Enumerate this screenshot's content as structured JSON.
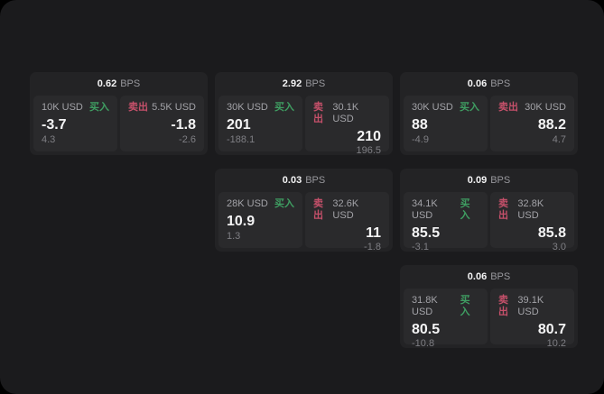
{
  "colors": {
    "screen_bg": "#1b1b1d",
    "card_bg": "#232325",
    "panel_bg": "#2a2a2c",
    "buy_green": "#3f9e62",
    "sell_red": "#c5506a",
    "price_white": "#f4f4f5",
    "label_gray": "#a3a3a8",
    "sub_gray": "#7f7f84",
    "unit_gray": "#98989d"
  },
  "cards": [
    {
      "bps_value": "0.62",
      "bps_unit": "BPS",
      "buy": {
        "amount": "10K USD",
        "label": "买入",
        "price": "-3.7",
        "sub": "4.3"
      },
      "sell": {
        "label": "卖出",
        "amount": "5.5K USD",
        "price": "-1.8",
        "sub": "-2.6"
      }
    },
    {
      "bps_value": "2.92",
      "bps_unit": "BPS",
      "buy": {
        "amount": "30K USD",
        "label": "买入",
        "price": "201",
        "sub": "-188.1"
      },
      "sell": {
        "label": "卖出",
        "amount": "30.1K USD",
        "price": "210",
        "sub": "196.5"
      }
    },
    {
      "bps_value": "0.06",
      "bps_unit": "BPS",
      "buy": {
        "amount": "30K USD",
        "label": "买入",
        "price": "88",
        "sub": "-4.9"
      },
      "sell": {
        "label": "卖出",
        "amount": "30K USD",
        "price": "88.2",
        "sub": "4.7"
      }
    },
    {
      "bps_value": "0.03",
      "bps_unit": "BPS",
      "buy": {
        "amount": "28K USD",
        "label": "买入",
        "price": "10.9",
        "sub": "1.3"
      },
      "sell": {
        "label": "卖出",
        "amount": "32.6K USD",
        "price": "11",
        "sub": "-1.8"
      }
    },
    {
      "bps_value": "0.09",
      "bps_unit": "BPS",
      "buy": {
        "amount": "34.1K USD",
        "label": "买入",
        "price": "85.5",
        "sub": "-3.1"
      },
      "sell": {
        "label": "卖出",
        "amount": "32.8K USD",
        "price": "85.8",
        "sub": "3.0"
      }
    },
    {
      "bps_value": "0.06",
      "bps_unit": "BPS",
      "buy": {
        "amount": "31.8K USD",
        "label": "买入",
        "price": "80.5",
        "sub": "-10.8"
      },
      "sell": {
        "label": "卖出",
        "amount": "39.1K USD",
        "price": "80.7",
        "sub": "10.2"
      }
    }
  ]
}
